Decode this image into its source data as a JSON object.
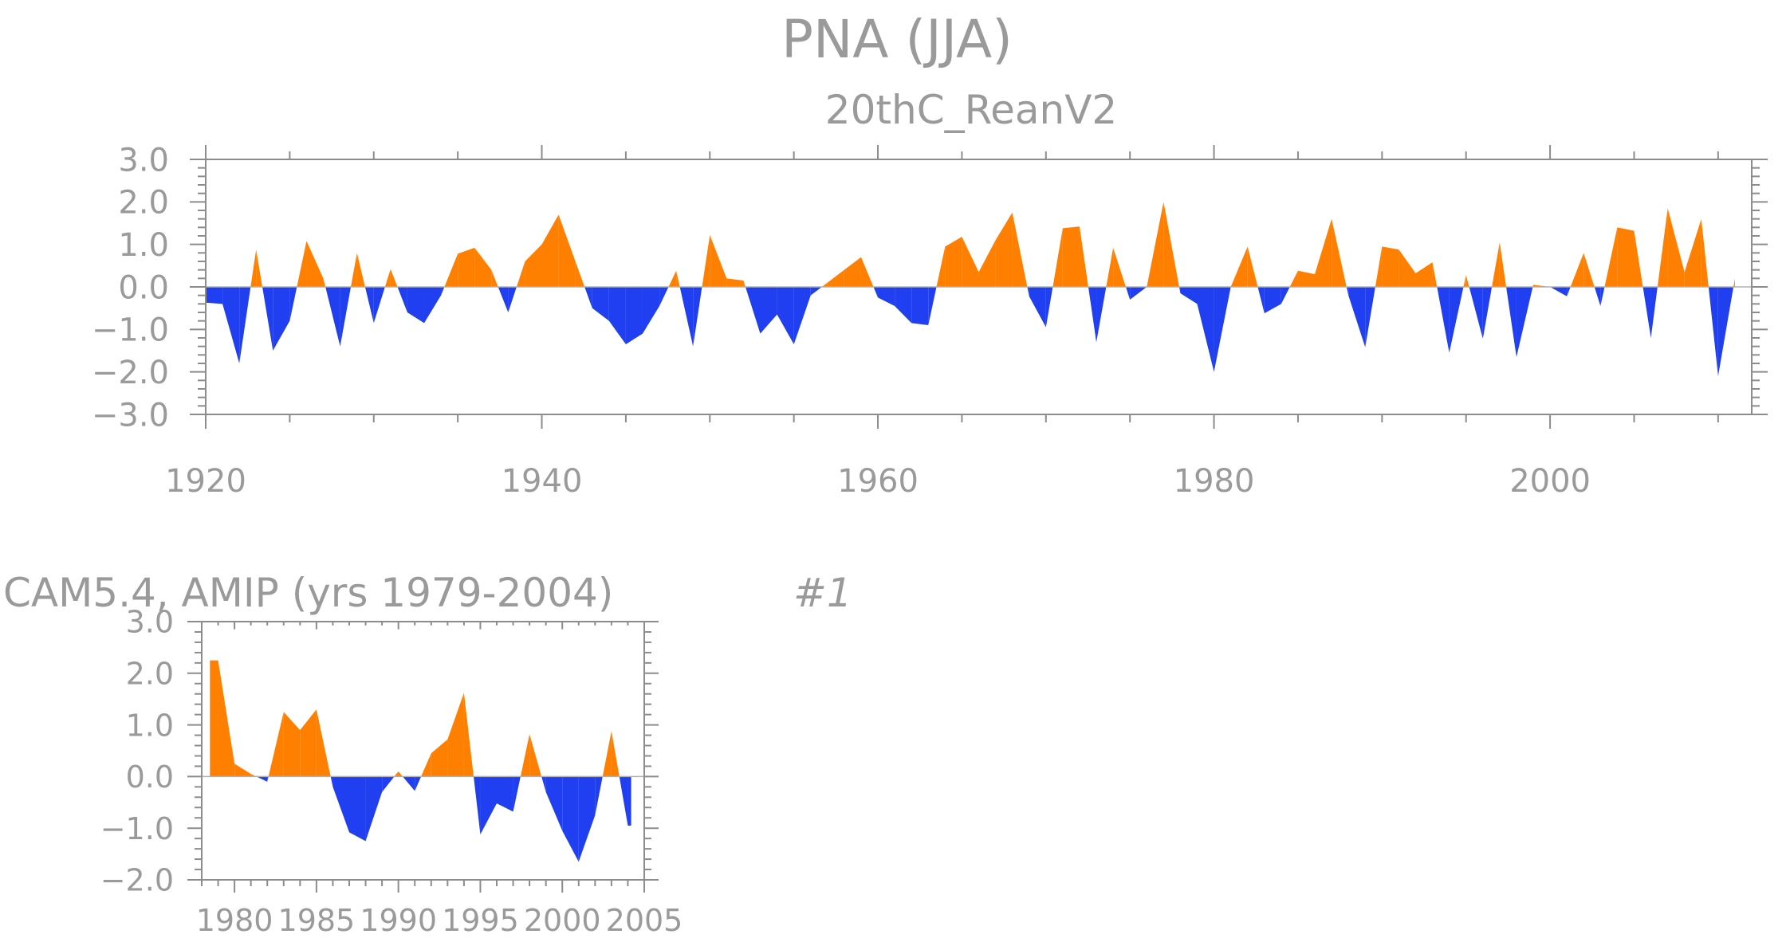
{
  "figure": {
    "title": "PNA (JJA)",
    "colors": {
      "positive": "#ff8000",
      "negative": "#1f3ff0",
      "text": "#9a9a9a",
      "axis": "#8c8c8c"
    }
  },
  "chart_data": [
    {
      "type": "area",
      "subtitle": "20thC_ReanV2",
      "xlim": [
        1920,
        2012
      ],
      "ylim": [
        -3.0,
        3.0
      ],
      "xticks": [
        1920,
        1940,
        1960,
        1980,
        2000
      ],
      "xtick_labels": [
        "1920",
        "1940",
        "1960",
        "1980",
        "2000"
      ],
      "yticks": [
        -3.0,
        -2.0,
        -1.0,
        0.0,
        1.0,
        2.0,
        3.0
      ],
      "ytick_labels": [
        "−3.0",
        "−2.0",
        "−1.0",
        "0.0",
        "1.0",
        "2.0",
        "3.0"
      ],
      "x": [
        1920,
        1921,
        1922,
        1923,
        1924,
        1925,
        1926,
        1927,
        1928,
        1929,
        1930,
        1931,
        1932,
        1933,
        1934,
        1935,
        1936,
        1937,
        1938,
        1939,
        1940,
        1941,
        1942,
        1943,
        1944,
        1945,
        1946,
        1947,
        1948,
        1949,
        1950,
        1951,
        1952,
        1953,
        1954,
        1955,
        1956,
        1957,
        1958,
        1959,
        1960,
        1961,
        1962,
        1963,
        1964,
        1965,
        1966,
        1967,
        1968,
        1969,
        1970,
        1971,
        1972,
        1973,
        1974,
        1975,
        1976,
        1977,
        1978,
        1979,
        1980,
        1981,
        1982,
        1983,
        1984,
        1985,
        1986,
        1987,
        1988,
        1989,
        1990,
        1991,
        1992,
        1993,
        1994,
        1995,
        1996,
        1997,
        1998,
        1999,
        2000,
        2001,
        2002,
        2003,
        2004,
        2005,
        2006,
        2007,
        2008,
        2009,
        2010,
        2011
      ],
      "values": [
        -0.37,
        -0.4,
        -1.8,
        0.88,
        -1.5,
        -0.8,
        1.08,
        0.2,
        -1.4,
        0.8,
        -0.85,
        0.42,
        -0.6,
        -0.85,
        -0.2,
        0.78,
        0.92,
        0.4,
        -0.6,
        0.6,
        1.0,
        1.7,
        0.6,
        -0.5,
        -0.8,
        -1.35,
        -1.1,
        -0.45,
        0.38,
        -1.4,
        1.22,
        0.2,
        0.15,
        -1.1,
        -0.65,
        -1.35,
        -0.2,
        0.1,
        0.4,
        0.7,
        -0.25,
        -0.45,
        -0.85,
        -0.9,
        0.95,
        1.18,
        0.35,
        1.1,
        1.75,
        -0.22,
        -0.95,
        1.38,
        1.42,
        -1.3,
        0.92,
        -0.3,
        0.0,
        2.0,
        -0.15,
        -0.4,
        -2.0,
        0.0,
        0.95,
        -0.62,
        -0.4,
        0.38,
        0.3,
        1.6,
        -0.2,
        -1.42,
        0.95,
        0.88,
        0.32,
        0.58,
        -1.55,
        0.28,
        -1.22,
        1.05,
        -1.65,
        0.05,
        0.0,
        -0.22,
        0.8,
        -0.45,
        1.4,
        1.32,
        -1.2,
        1.85,
        0.35,
        1.6,
        -2.1,
        0.2
      ]
    },
    {
      "type": "area",
      "subtitle": "CAM5.4, AMIP (yrs 1979-2004)",
      "label": "#1",
      "xlim": [
        1978,
        2005
      ],
      "ylim": [
        -2.0,
        3.0
      ],
      "xticks": [
        1980,
        1985,
        1990,
        1995,
        2000,
        2005
      ],
      "xtick_labels": [
        "1980",
        "1985",
        "1990",
        "1995",
        "2000",
        "2005"
      ],
      "yticks": [
        -2.0,
        -1.0,
        0.0,
        1.0,
        2.0,
        3.0
      ],
      "ytick_labels": [
        "−2.0",
        "−1.0",
        "0.0",
        "1.0",
        "2.0",
        "3.0"
      ],
      "x": [
        1978.5,
        1979,
        1980,
        1981,
        1982,
        1983,
        1984,
        1985,
        1986,
        1987,
        1988,
        1989,
        1990,
        1991,
        1992,
        1993,
        1994,
        1995,
        1996,
        1997,
        1998,
        1999,
        2000,
        2001,
        2002,
        2003,
        2004,
        2004.2
      ],
      "values": [
        2.25,
        2.25,
        0.25,
        0.05,
        -0.1,
        1.25,
        0.9,
        1.3,
        -0.2,
        -1.08,
        -1.25,
        -0.3,
        0.1,
        -0.28,
        0.45,
        0.72,
        1.62,
        -1.12,
        -0.52,
        -0.68,
        0.82,
        -0.3,
        -1.05,
        -1.65,
        -0.75,
        0.88,
        -0.95,
        -0.95
      ]
    }
  ]
}
